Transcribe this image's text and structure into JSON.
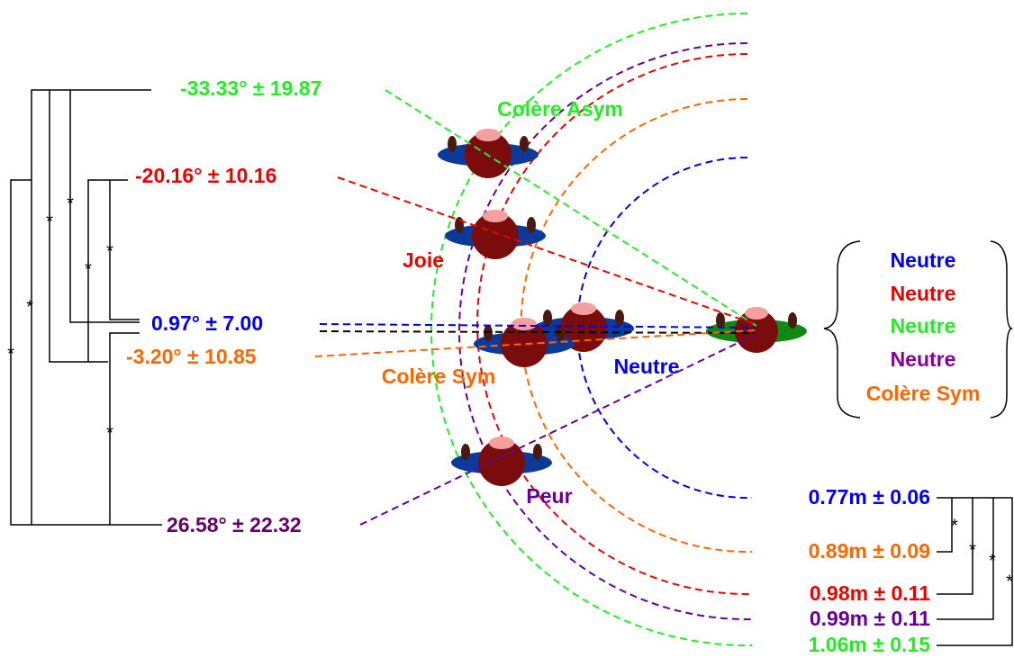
{
  "angle_labels": [
    "-33.33° ± 19.87",
    "-20.16° ± 10.16",
    "0.97° ± 7.00",
    "-3.20° ± 10.85",
    "26.58° ± 22.32"
  ],
  "distance_labels": [
    "0.77m ± 0.06",
    "0.89m ± 0.09",
    "0.98m ± 0.11",
    "0.99m ± 0.11",
    "1.06m ± 0.15"
  ],
  "agent_labels": [
    "Colère Asym",
    "Joie",
    "Colère Sym",
    "Neutre",
    "Peur"
  ],
  "legend": {
    "items": [
      "Neutre",
      "Neutre",
      "Neutre",
      "Neutre",
      "Colère Sym"
    ]
  },
  "significance_marker": "*"
}
